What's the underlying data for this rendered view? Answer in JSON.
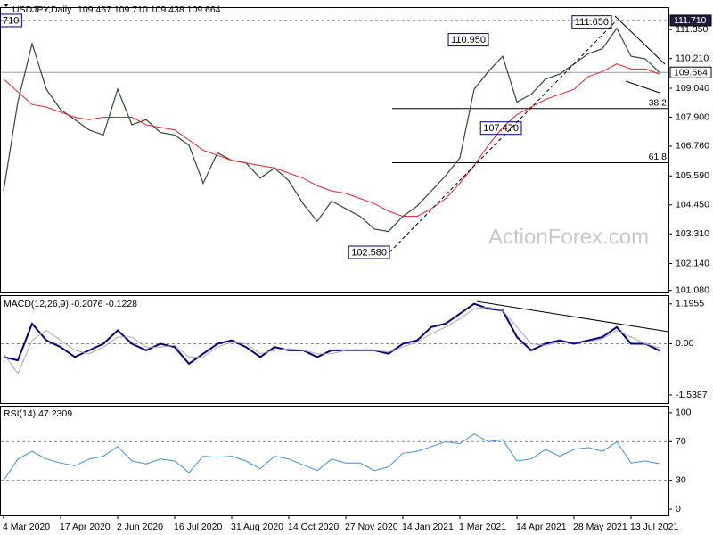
{
  "x_labels": [
    "4 Mar 2020",
    "17 Apr 2020",
    "2 Jun 2020",
    "16 Jul 2020",
    "31 Aug 2020",
    "14 Oct 2020",
    "27 Nov 2020",
    "14 Jan 2021",
    "1 Mar 2021",
    "14 Apr 2021",
    "28 May 2021",
    "13 Jul 2021"
  ],
  "watermark": "ActionForex.com",
  "chart_data": [
    {
      "type": "line",
      "title": "USDJPY,Daily",
      "ohlc": "109.467 109.710 109.438 109.664",
      "ylim": [
        101.0,
        112.2
      ],
      "yticks": [
        {
          "value": 101.08,
          "label": "101.080"
        },
        {
          "value": 102.14,
          "label": "102.140"
        },
        {
          "value": 103.31,
          "label": "103.310"
        },
        {
          "value": 104.45,
          "label": "104.450"
        },
        {
          "value": 105.59,
          "label": "105.590"
        },
        {
          "value": 106.76,
          "label": "106.760"
        },
        {
          "value": 107.9,
          "label": "107.900"
        },
        {
          "value": 109.04,
          "label": "109.040"
        },
        {
          "value": 110.21,
          "label": "110.210"
        },
        {
          "value": 111.35,
          "label": "111.350"
        }
      ],
      "hlines": [
        {
          "value": 111.71,
          "label": "111.710",
          "style": "dashed"
        },
        {
          "value": 109.664,
          "label": "109.664",
          "style": "solid"
        }
      ],
      "fib_levels": [
        {
          "value": 108.24,
          "label": "38.2"
        },
        {
          "value": 106.11,
          "label": "61.8"
        }
      ],
      "annotations": [
        {
          "value": 111.71,
          "label": "710"
        },
        {
          "value": 102.58,
          "label": "102.580"
        },
        {
          "value": 110.95,
          "label": "110.950"
        },
        {
          "value": 111.65,
          "label": "111.650"
        },
        {
          "value": 107.47,
          "label": "107.470"
        }
      ],
      "series": [
        {
          "name": "USDJPY",
          "color": "#2e4a2e",
          "values": [
            105.0,
            108.5,
            110.8,
            109.0,
            108.2,
            107.8,
            107.4,
            107.2,
            109.0,
            107.6,
            107.8,
            107.3,
            107.2,
            106.8,
            105.3,
            106.5,
            106.2,
            106.1,
            105.5,
            105.9,
            105.4,
            104.5,
            103.8,
            104.6,
            104.3,
            104.0,
            103.5,
            103.4,
            104.0,
            104.4,
            105.0,
            105.6,
            106.3,
            109.0,
            109.7,
            110.3,
            108.5,
            108.8,
            109.4,
            109.6,
            110.0,
            110.4,
            110.6,
            111.4,
            110.3,
            110.2,
            109.664
          ]
        },
        {
          "name": "MA",
          "color": "#e4262a",
          "values": [
            109.4,
            108.9,
            108.4,
            108.3,
            108.1,
            107.9,
            107.8,
            107.9,
            107.9,
            107.9,
            107.6,
            107.5,
            107.4,
            107.0,
            106.6,
            106.4,
            106.2,
            106.1,
            106.0,
            105.9,
            105.7,
            105.5,
            105.2,
            105.0,
            104.9,
            104.7,
            104.5,
            104.2,
            104.0,
            104.0,
            104.3,
            104.7,
            105.3,
            106.0,
            106.8,
            107.5,
            108.0,
            108.3,
            108.6,
            108.8,
            109.0,
            109.5,
            109.7,
            110.0,
            109.8,
            109.8,
            109.6
          ]
        }
      ]
    },
    {
      "type": "line",
      "title": "MACD(12,26,9) -0.2076 -0.1228",
      "ylim": [
        -1.78,
        1.43
      ],
      "yticks": [
        1.1955,
        {
          "value": 0,
          "label": "0.00"
        },
        -1.5387
      ],
      "series": [
        {
          "name": "MACD",
          "color": "#000080",
          "values": [
            -0.4,
            -0.5,
            0.6,
            0.1,
            -0.1,
            -0.4,
            -0.2,
            0.0,
            0.4,
            0.0,
            -0.2,
            0.0,
            -0.1,
            -0.6,
            -0.3,
            0.0,
            0.1,
            -0.1,
            -0.4,
            -0.1,
            -0.2,
            -0.2,
            -0.4,
            -0.2,
            -0.2,
            -0.2,
            -0.2,
            -0.3,
            0.0,
            0.1,
            0.5,
            0.6,
            0.9,
            1.2,
            1.05,
            1.0,
            0.2,
            -0.2,
            0.0,
            0.1,
            0.0,
            0.1,
            0.2,
            0.5,
            0.0,
            0.0,
            -0.2076
          ]
        },
        {
          "name": "Signal",
          "color": "#a8a8a8",
          "values": [
            -0.3,
            -0.9,
            0.1,
            0.4,
            0.1,
            -0.2,
            -0.3,
            -0.1,
            0.2,
            0.2,
            -0.1,
            -0.1,
            -0.05,
            -0.4,
            -0.4,
            -0.1,
            0.05,
            0.0,
            -0.3,
            -0.2,
            -0.15,
            -0.2,
            -0.3,
            -0.3,
            -0.2,
            -0.2,
            -0.2,
            -0.25,
            -0.1,
            0.05,
            0.3,
            0.5,
            0.75,
            1.05,
            1.1,
            1.0,
            0.5,
            0.0,
            -0.05,
            0.05,
            0.05,
            0.05,
            0.15,
            0.4,
            0.2,
            0.0,
            -0.1228
          ]
        }
      ]
    },
    {
      "type": "line",
      "title": "RSI(14) 47.2309",
      "ylim": [
        -6.4,
        106.4
      ],
      "yticks": [
        100,
        70,
        30,
        0
      ],
      "levels": [
        70,
        30
      ],
      "series": [
        {
          "name": "RSI",
          "color": "#3d8fe0",
          "values": [
            30,
            52,
            60,
            52,
            48,
            45,
            52,
            55,
            65,
            50,
            47,
            52,
            50,
            38,
            55,
            54,
            55,
            50,
            42,
            55,
            52,
            46,
            40,
            52,
            48,
            48,
            40,
            44,
            58,
            60,
            65,
            70,
            68,
            78,
            70,
            72,
            50,
            52,
            62,
            55,
            62,
            64,
            60,
            70,
            48,
            50,
            47.2309
          ]
        }
      ]
    }
  ]
}
